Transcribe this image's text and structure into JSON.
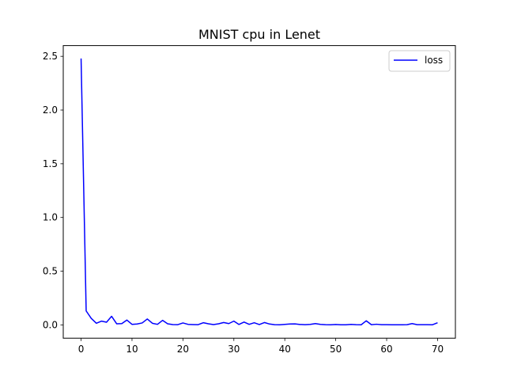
{
  "chart_data": {
    "type": "line",
    "title": "MNIST cpu in Lenet",
    "xlabel": "",
    "ylabel": "",
    "xlim": [
      -3.5,
      73.5
    ],
    "ylim": [
      -0.124,
      2.6
    ],
    "xticks": [
      0,
      10,
      20,
      30,
      40,
      50,
      60,
      70
    ],
    "yticks": [
      0.0,
      0.5,
      1.0,
      1.5,
      2.0,
      2.5
    ],
    "ytick_labels": [
      "0.0",
      "0.5",
      "1.0",
      "1.5",
      "2.0",
      "2.5"
    ],
    "grid": false,
    "legend_position": "top-right",
    "series": [
      {
        "name": "loss",
        "color": "#0000ff",
        "x": [
          0,
          1,
          2,
          3,
          4,
          5,
          6,
          7,
          8,
          9,
          10,
          11,
          12,
          13,
          14,
          15,
          16,
          17,
          18,
          19,
          20,
          21,
          22,
          23,
          24,
          25,
          26,
          27,
          28,
          29,
          30,
          31,
          32,
          33,
          34,
          35,
          36,
          37,
          38,
          39,
          40,
          41,
          42,
          43,
          44,
          45,
          46,
          47,
          48,
          49,
          50,
          51,
          52,
          53,
          54,
          55,
          56,
          57,
          58,
          59,
          60,
          61,
          62,
          63,
          64,
          65,
          66,
          67,
          68,
          69,
          70
        ],
        "values": [
          2.48,
          0.13,
          0.06,
          0.015,
          0.035,
          0.025,
          0.08,
          0.01,
          0.012,
          0.045,
          0.005,
          0.008,
          0.018,
          0.055,
          0.015,
          0.005,
          0.042,
          0.01,
          0.003,
          0.002,
          0.018,
          0.005,
          0.003,
          0.002,
          0.02,
          0.01,
          0.003,
          0.01,
          0.022,
          0.012,
          0.035,
          0.004,
          0.026,
          0.005,
          0.02,
          0.003,
          0.022,
          0.008,
          0.002,
          0.001,
          0.005,
          0.008,
          0.009,
          0.004,
          0.002,
          0.005,
          0.012,
          0.005,
          0.002,
          0.001,
          0.004,
          0.001,
          0.001,
          0.005,
          0.002,
          0.001,
          0.038,
          0.002,
          0.006,
          0.002,
          0.002,
          0.001,
          0.001,
          0.001,
          0.002,
          0.012,
          0.002,
          0.002,
          0.002,
          0.001,
          0.02
        ]
      }
    ]
  }
}
